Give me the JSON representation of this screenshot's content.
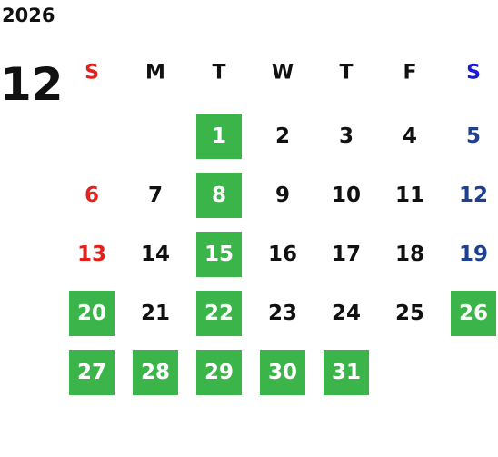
{
  "calendar": {
    "year": "2026",
    "month": "12",
    "weekdays": [
      "S",
      "M",
      "T",
      "W",
      "T",
      "F",
      "S"
    ],
    "colors": {
      "sunday": "#e3201b",
      "saturday_header": "#1a1adb",
      "saturday": "#1f3f8f",
      "weekday": "#111111",
      "highlight": "#3bb54a",
      "highlight_text": "#ffffff"
    },
    "weeks": [
      [
        null,
        null,
        {
          "day": 1,
          "highlight": true
        },
        {
          "day": 2,
          "highlight": false
        },
        {
          "day": 3,
          "highlight": false
        },
        {
          "day": 4,
          "highlight": false
        },
        {
          "day": 5,
          "highlight": false
        }
      ],
      [
        {
          "day": 6,
          "highlight": false
        },
        {
          "day": 7,
          "highlight": false
        },
        {
          "day": 8,
          "highlight": true
        },
        {
          "day": 9,
          "highlight": false
        },
        {
          "day": 10,
          "highlight": false
        },
        {
          "day": 11,
          "highlight": false
        },
        {
          "day": 12,
          "highlight": false
        }
      ],
      [
        {
          "day": 13,
          "highlight": false
        },
        {
          "day": 14,
          "highlight": false
        },
        {
          "day": 15,
          "highlight": true
        },
        {
          "day": 16,
          "highlight": false
        },
        {
          "day": 17,
          "highlight": false
        },
        {
          "day": 18,
          "highlight": false
        },
        {
          "day": 19,
          "highlight": false
        }
      ],
      [
        {
          "day": 20,
          "highlight": true
        },
        {
          "day": 21,
          "highlight": false
        },
        {
          "day": 22,
          "highlight": true
        },
        {
          "day": 23,
          "highlight": false
        },
        {
          "day": 24,
          "highlight": false
        },
        {
          "day": 25,
          "highlight": false
        },
        {
          "day": 26,
          "highlight": true
        }
      ],
      [
        {
          "day": 27,
          "highlight": true
        },
        {
          "day": 28,
          "highlight": true
        },
        {
          "day": 29,
          "highlight": true
        },
        {
          "day": 30,
          "highlight": true
        },
        {
          "day": 31,
          "highlight": true
        },
        null,
        null
      ]
    ]
  }
}
